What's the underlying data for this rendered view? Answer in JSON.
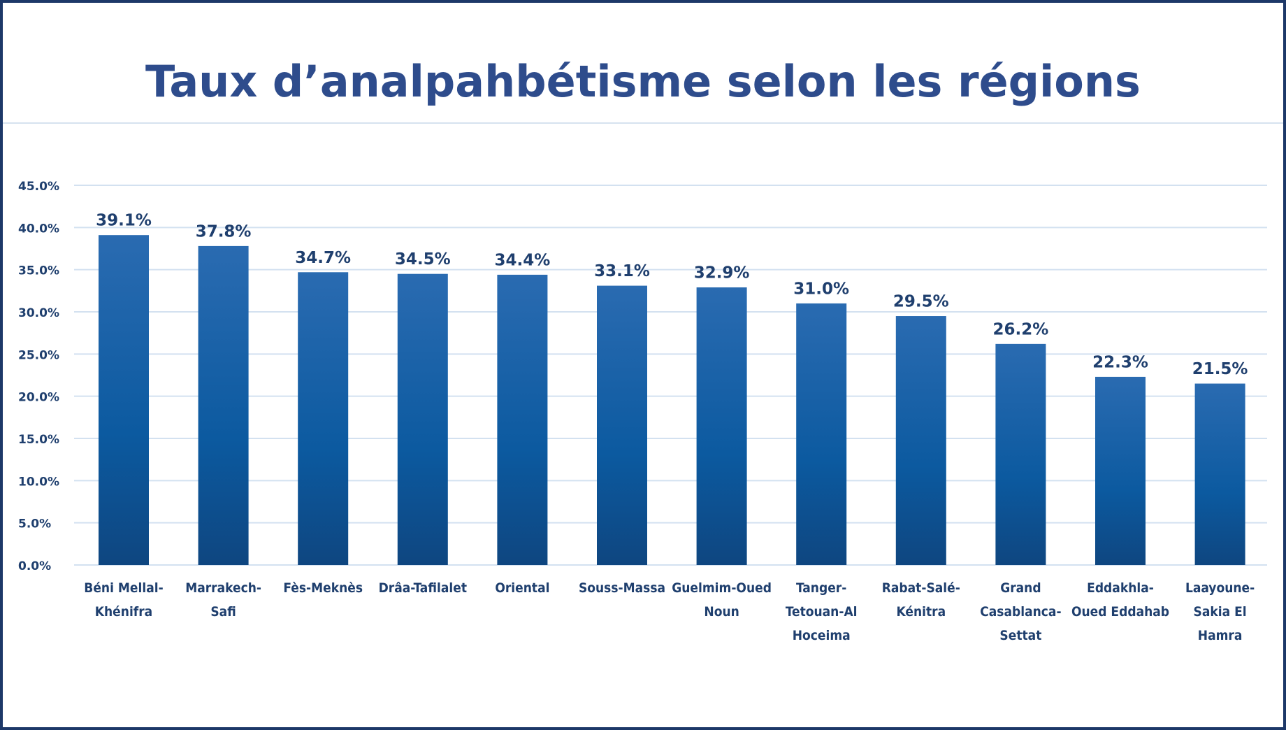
{
  "chart_data": {
    "type": "bar",
    "title": "Taux d’analpahbétisme selon les régions",
    "categories": [
      "Béni Mellal-Khénifra",
      "Marrakech-Safi",
      "Fès-Meknès",
      "Drâa-Tafilalet",
      "Oriental",
      "Souss-Massa",
      "Guelmim-Oued Noun",
      "Tanger-Tetouan-Al Hoceima",
      "Rabat-Salé-Kénitra",
      "Grand Casablanca-Settat",
      "Eddakhla-Oued Eddahab",
      "Laayoune-Sakia El Hamra"
    ],
    "values": [
      39.1,
      37.8,
      34.7,
      34.5,
      34.4,
      33.1,
      32.9,
      31.0,
      29.5,
      26.2,
      22.3,
      21.5
    ],
    "value_labels": [
      "39.1%",
      "37.8%",
      "34.7%",
      "34.5%",
      "34.4%",
      "33.1%",
      "32.9%",
      "31.0%",
      "29.5%",
      "26.2%",
      "22.3%",
      "21.5%"
    ],
    "color": "#1a5ea3",
    "ylim": [
      0,
      45
    ],
    "yticks": [
      {
        "value": 0,
        "label": "0.0%"
      },
      {
        "value": 5,
        "label": "5.0%"
      },
      {
        "value": 10,
        "label": "10.0%"
      },
      {
        "value": 15,
        "label": "15.0%"
      },
      {
        "value": 20,
        "label": "20.0%"
      },
      {
        "value": 25,
        "label": "25.0%"
      },
      {
        "value": 30,
        "label": "30.0%"
      },
      {
        "value": 35,
        "label": "35.0%"
      },
      {
        "value": 40,
        "label": "40.0%"
      },
      {
        "value": 45,
        "label": "45.0%"
      }
    ],
    "grid": true
  }
}
